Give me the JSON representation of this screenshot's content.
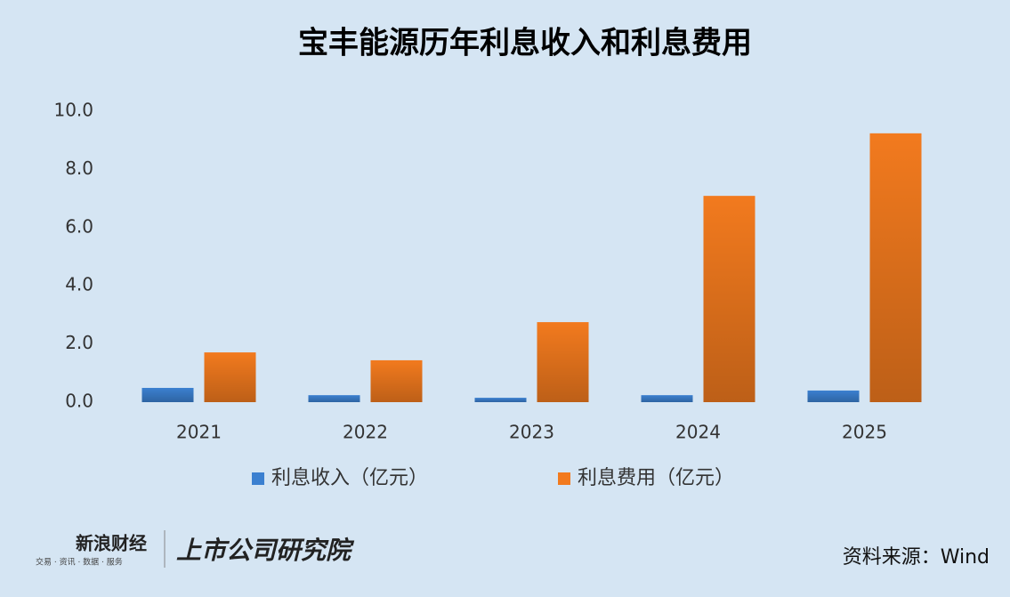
{
  "chart_data": {
    "type": "bar",
    "title": "宝丰能源历年利息收入和利息费用",
    "categories": [
      "2021",
      "2022",
      "2023",
      "2024",
      "2025"
    ],
    "series": [
      {
        "name": "利息收入（亿元）",
        "color": "#3b80d0",
        "values": [
          0.49,
          0.24,
          0.15,
          0.24,
          0.4
        ]
      },
      {
        "name": "利息费用（亿元）",
        "color": "#f27a1e",
        "values": [
          1.71,
          1.44,
          2.75,
          7.09,
          9.24
        ]
      }
    ],
    "ylim": [
      0,
      10
    ],
    "yticks": [
      {
        "value": 0,
        "label": "0.0"
      },
      {
        "value": 2,
        "label": "2.0"
      },
      {
        "value": 4,
        "label": "4.0"
      },
      {
        "value": 6,
        "label": "6.0"
      },
      {
        "value": 8,
        "label": "8.0"
      },
      {
        "value": 10,
        "label": "10.0"
      }
    ],
    "grid": false,
    "legend": "bottom",
    "source": "资料来源：Wind"
  },
  "branding": {
    "sina": "新浪财经",
    "sina_tagline": "交易 · 资讯 · 数据 · 服务",
    "institute": "上市公司研究院"
  }
}
